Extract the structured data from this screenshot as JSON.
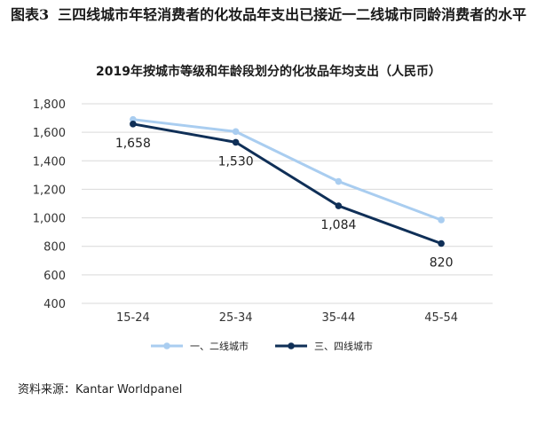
{
  "figure": {
    "number": "图表3",
    "title": "三四线城市年轻消费者的化妆品年支出已接近一二线城市同龄消费者的水平"
  },
  "source": "资料来源：Kantar Worldpanel",
  "colors": {
    "series1": "#a9cdf0",
    "series2": "#0f2f57",
    "grid": "#d9d9d9",
    "text": "#333333"
  },
  "chart_data": {
    "type": "line",
    "title": "2019年按城市等级和年龄段划分的化妆品年均支出（人民币）",
    "categories": [
      "15-24",
      "25-34",
      "35-44",
      "45-54"
    ],
    "ylim": [
      400,
      1800
    ],
    "yticks": [
      "400",
      "600",
      "800",
      "1,000",
      "1,200",
      "1,400",
      "1,600",
      "1,800"
    ],
    "ytick_values": [
      400,
      600,
      800,
      1000,
      1200,
      1400,
      1600,
      1800
    ],
    "grid": true,
    "legend_position": "bottom",
    "series": [
      {
        "name": "一、二线城市",
        "values": [
          1690,
          1605,
          1255,
          985
        ],
        "labels": [
          "",
          "",
          "",
          ""
        ]
      },
      {
        "name": "三、四线城市",
        "values": [
          1658,
          1530,
          1084,
          820
        ],
        "labels": [
          "1,658",
          "1,530",
          "1,084",
          "820"
        ]
      }
    ]
  }
}
